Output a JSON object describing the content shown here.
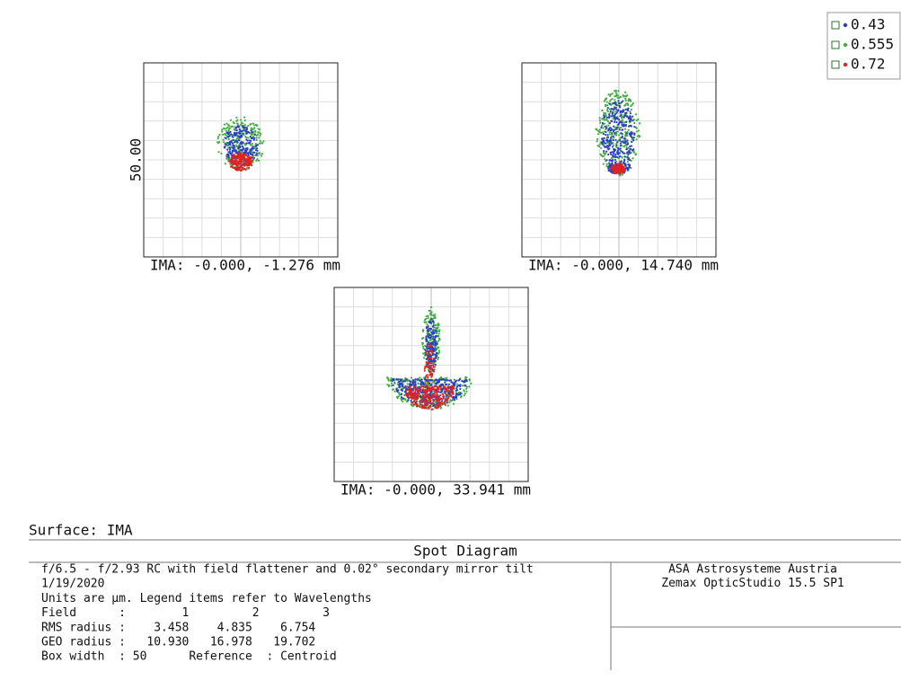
{
  "legend": {
    "items": [
      "0.43",
      "0.555",
      "0.72"
    ]
  },
  "plots": [
    {
      "label": "IMA: -0.000, -1.276 mm",
      "axis_label": "50.00"
    },
    {
      "label": "IMA: -0.000, 14.740 mm"
    },
    {
      "label": "IMA: -0.000, 33.941 mm"
    }
  ],
  "surface": "Surface: IMA",
  "footer": {
    "title": "Spot Diagram",
    "lines": [
      "f/6.5 - f/2.93 RC with field flattener and 0.02° secondary mirror tilt",
      "1/19/2020",
      "Units are µm. Legend items refer to Wavelengths",
      "Field      :        1         2         3",
      "RMS radius :    3.458    4.835    6.754",
      "GEO radius :   10.930   16.978   19.702",
      "Box width  : 50      Reference  : Centroid"
    ],
    "company": [
      "ASA Astrosysteme Austria",
      "Zemax OpticStudio 15.5 SP1"
    ]
  }
}
